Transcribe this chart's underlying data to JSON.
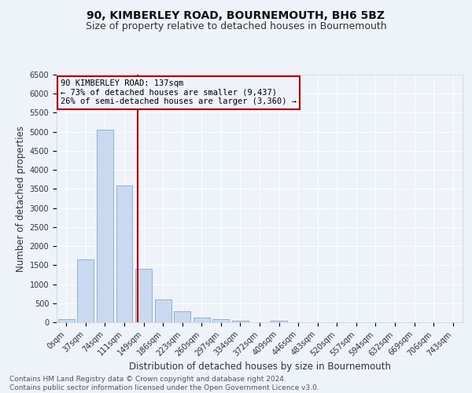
{
  "title": "90, KIMBERLEY ROAD, BOURNEMOUTH, BH6 5BZ",
  "subtitle": "Size of property relative to detached houses in Bournemouth",
  "xlabel": "Distribution of detached houses by size in Bournemouth",
  "ylabel": "Number of detached properties",
  "bin_labels": [
    "0sqm",
    "37sqm",
    "74sqm",
    "111sqm",
    "149sqm",
    "186sqm",
    "223sqm",
    "260sqm",
    "297sqm",
    "334sqm",
    "372sqm",
    "409sqm",
    "446sqm",
    "483sqm",
    "520sqm",
    "557sqm",
    "594sqm",
    "632sqm",
    "669sqm",
    "706sqm",
    "743sqm"
  ],
  "bar_values": [
    75,
    1650,
    5050,
    3600,
    1400,
    600,
    280,
    120,
    75,
    40,
    0,
    50,
    0,
    0,
    0,
    0,
    0,
    0,
    0,
    0,
    0
  ],
  "bar_color": "#c9d9ef",
  "bar_edge_color": "#7fa8d1",
  "vline_color": "#cc0000",
  "annotation_text": "90 KIMBERLEY ROAD: 137sqm\n← 73% of detached houses are smaller (9,437)\n26% of semi-detached houses are larger (3,360) →",
  "annotation_box_color": "#cc0000",
  "ylim": [
    0,
    6500
  ],
  "yticks": [
    0,
    500,
    1000,
    1500,
    2000,
    2500,
    3000,
    3500,
    4000,
    4500,
    5000,
    5500,
    6000,
    6500
  ],
  "footnote": "Contains HM Land Registry data © Crown copyright and database right 2024.\nContains public sector information licensed under the Open Government Licence v3.0.",
  "bg_color": "#eef2f9",
  "grid_color": "#ffffff",
  "title_fontsize": 10,
  "subtitle_fontsize": 9,
  "label_fontsize": 8.5,
  "tick_fontsize": 7,
  "footnote_fontsize": 6.5,
  "annotation_fontsize": 7.5
}
